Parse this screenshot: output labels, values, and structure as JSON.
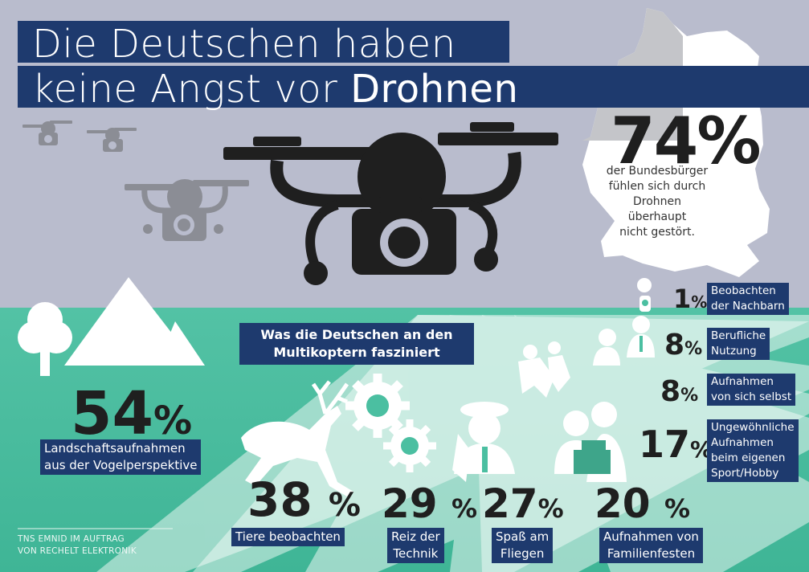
{
  "title": {
    "line1": "Die Deutschen haben",
    "line2_prefix": "keine Angst vor ",
    "line2_bold": "Drohnen"
  },
  "headline_stat": {
    "value": "74%",
    "text": [
      "der Bundesbürger",
      "fühlen sich durch",
      "Drohnen",
      "überhaupt",
      "nicht gestört."
    ]
  },
  "subheading": [
    "Was die Deutschen an den",
    "Multikoptern fasziniert"
  ],
  "stats": [
    {
      "value": "54",
      "unit": "%",
      "label": [
        "Landschaftsaufnahmen",
        "aus der Vogelperspektive"
      ]
    },
    {
      "value": "38",
      "unit": "%",
      "label": [
        "Tiere beobachten"
      ]
    },
    {
      "value": "29",
      "unit": "%",
      "label": [
        "Reiz der",
        "Technik"
      ]
    },
    {
      "value": "27",
      "unit": "%",
      "label": [
        "Spaß am",
        "Fliegen"
      ]
    },
    {
      "value": "20",
      "unit": "%",
      "label": [
        "Aufnahmen von",
        "Familienfesten"
      ]
    },
    {
      "value": "17",
      "unit": "%",
      "label": [
        "Ungewöhnliche",
        "Aufnahmen",
        "beim eigenen",
        "Sport/Hobby"
      ]
    },
    {
      "value": "8",
      "unit": "%",
      "label": [
        "Aufnahmen",
        "von sich selbst"
      ]
    },
    {
      "value": "8",
      "unit": "%",
      "label": [
        "Berufliche",
        "Nutzung"
      ]
    },
    {
      "value": "1",
      "unit": "%",
      "label": [
        "Beobachten",
        "der Nachbarn"
      ]
    }
  ],
  "source": [
    "TNS EMNID IM AUFTRAG",
    "VON RECHELT ELEKTRONIK"
  ],
  "colors": {
    "background": "#b9bccd",
    "navy": "#1e3a6e",
    "teal": "#4bbfa1",
    "dark": "#1f1f1f",
    "grey_icon": "#8b8d95"
  }
}
